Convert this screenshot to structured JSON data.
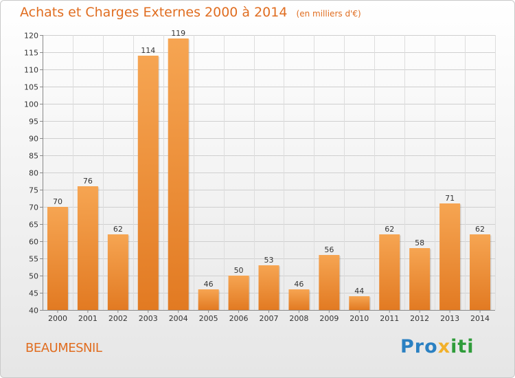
{
  "brand_colors": {
    "accent": "#e06d20",
    "bar_light": "#f6a552",
    "bar_dark": "#e27a22"
  },
  "header": {
    "title": "Achats et Charges Externes 2000 à 2014",
    "subtitle": "(en milliers d'€)"
  },
  "footer": {
    "town": "BEAUMESNIL",
    "brand_letters": [
      {
        "ch": "P",
        "color": "#2a80c2"
      },
      {
        "ch": "r",
        "color": "#2a80c2"
      },
      {
        "ch": "o",
        "color": "#2a80c2"
      },
      {
        "ch": "x",
        "color": "#f2b02a"
      },
      {
        "ch": "i",
        "color": "#2f9c3a"
      },
      {
        "ch": "t",
        "color": "#2f9c3a"
      },
      {
        "ch": "i",
        "color": "#2f9c3a"
      }
    ]
  },
  "chart_data": {
    "type": "bar",
    "title": "Achats et Charges Externes 2000 à 2014",
    "subtitle": "(en milliers d'€)",
    "categories": [
      "2000",
      "2001",
      "2002",
      "2003",
      "2004",
      "2005",
      "2006",
      "2007",
      "2008",
      "2009",
      "2010",
      "2011",
      "2012",
      "2013",
      "2014"
    ],
    "values": [
      70,
      76,
      62,
      114,
      119,
      46,
      50,
      53,
      46,
      56,
      44,
      62,
      58,
      71,
      62
    ],
    "ylim": [
      40,
      120
    ],
    "yticks": [
      40,
      45,
      50,
      55,
      60,
      65,
      70,
      75,
      80,
      85,
      90,
      95,
      100,
      105,
      110,
      115,
      120
    ],
    "grid": true,
    "data_labels": true
  }
}
